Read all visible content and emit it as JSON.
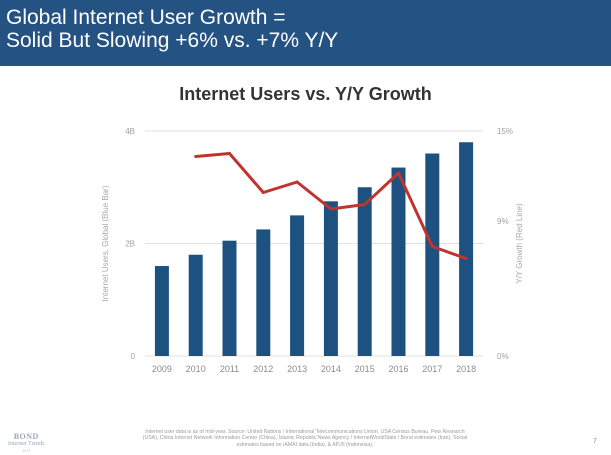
{
  "header": {
    "title_line1": "Global Internet User Growth =",
    "title_line2": "Solid But Slowing +6% vs. +7% Y/Y"
  },
  "chart_data": {
    "type": "bar",
    "title": "Internet Users vs. Y/Y Growth",
    "categories": [
      "2009",
      "2010",
      "2011",
      "2012",
      "2013",
      "2014",
      "2015",
      "2016",
      "2017",
      "2018"
    ],
    "series": [
      {
        "name": "Internet Users, Global (Blue Bar)",
        "type": "bar",
        "axis": "left",
        "color": "#1d5180",
        "values": [
          1.6,
          1.8,
          2.05,
          2.25,
          2.5,
          2.75,
          3.0,
          3.35,
          3.6,
          3.8
        ]
      },
      {
        "name": "Y/Y Growth (Red Line)",
        "type": "line",
        "axis": "right",
        "color": "#c0332e",
        "values": [
          null,
          13.3,
          13.5,
          10.9,
          11.6,
          9.8,
          10.1,
          12.2,
          7.3,
          6.5
        ]
      }
    ],
    "ylabel": "Internet Users, Global (Blue Bar)",
    "y2label": "Y/Y Growth (Red Line)",
    "ylim": [
      0,
      4
    ],
    "y2lim": [
      0,
      15
    ],
    "y_ticks": [
      {
        "v": 0,
        "label": "0"
      },
      {
        "v": 2,
        "label": "2B"
      },
      {
        "v": 4,
        "label": "4B"
      }
    ],
    "y2_ticks": [
      {
        "v": 0,
        "label": "0%"
      },
      {
        "v": 9,
        "label": "9%"
      },
      {
        "v": 15,
        "label": "15%"
      }
    ]
  },
  "footer": {
    "note": "Internet user data is as of mid-year. Source: United Nations / International Telecommunications Union, USA Census Bureau, Pew Research (USA), China Internet Network Information Center (China), Islamic Republic News Agency / InternetWorldStats / Bond estimates (Iran), Social estimates based on IAMAI data (India), & APJII (Indonesia).",
    "page_number": "7"
  },
  "logo": {
    "name": "BOND",
    "subtitle": "Internet Trends",
    "year": "2019"
  }
}
